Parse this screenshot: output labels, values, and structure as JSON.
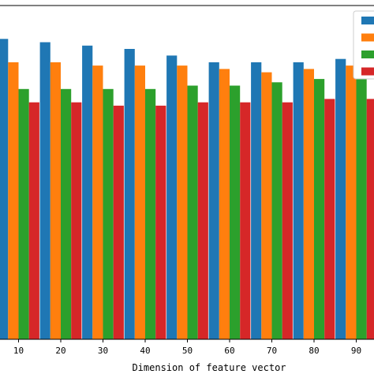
{
  "chart_data": {
    "type": "bar",
    "title": "",
    "xlabel": "Dimension of feature vector",
    "ylabel": "",
    "categories": [
      "10",
      "20",
      "30",
      "40",
      "50",
      "60",
      "70",
      "80",
      "90"
    ],
    "ylim": [
      0,
      1
    ],
    "grid": false,
    "legend_position": "top-right",
    "colors": [
      "#1f77b4",
      "#ff7f0e",
      "#2ca02c",
      "#d62728"
    ],
    "series": [
      {
        "values": [
          0.9,
          0.89,
          0.88,
          0.87,
          0.85,
          0.83,
          0.83,
          0.83,
          0.84
        ]
      },
      {
        "values": [
          0.83,
          0.83,
          0.82,
          0.82,
          0.82,
          0.81,
          0.8,
          0.81,
          0.82
        ]
      },
      {
        "values": [
          0.75,
          0.75,
          0.75,
          0.75,
          0.76,
          0.76,
          0.77,
          0.78,
          0.79
        ]
      },
      {
        "values": [
          0.71,
          0.71,
          0.7,
          0.7,
          0.71,
          0.71,
          0.71,
          0.72,
          0.72
        ]
      }
    ]
  }
}
